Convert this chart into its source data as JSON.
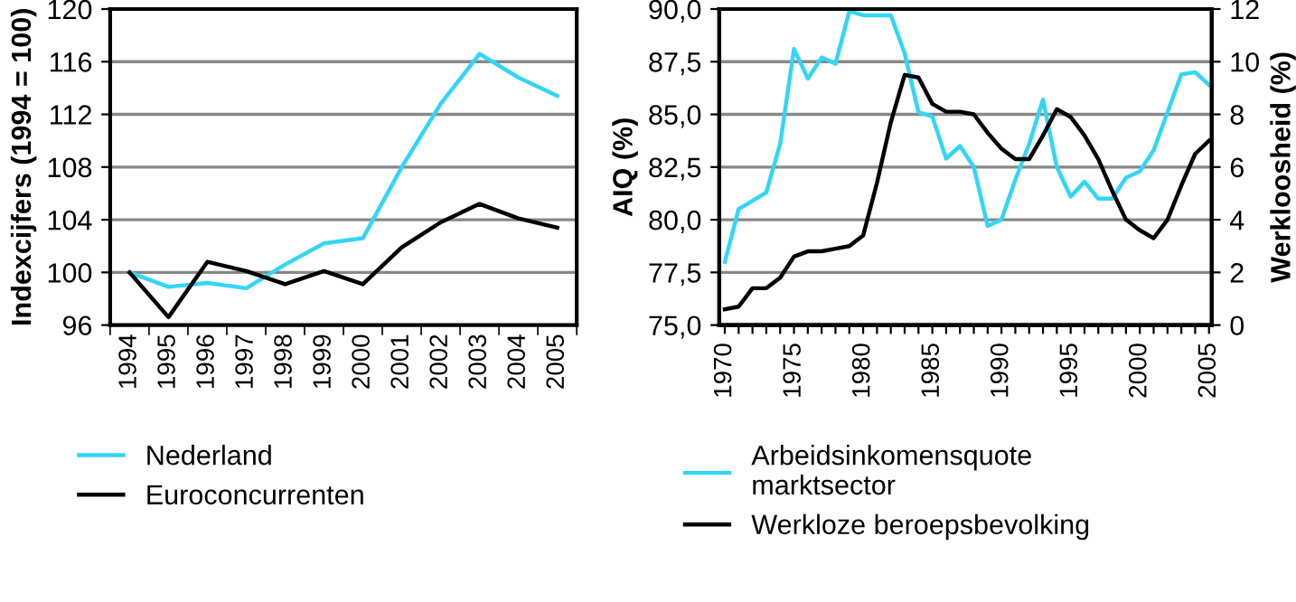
{
  "chart_data": [
    {
      "type": "line",
      "ylabel": "Indexcijfers (1994 = 100)",
      "categories": [
        "1994",
        "1995",
        "1996",
        "1997",
        "1998",
        "1999",
        "2000",
        "2001",
        "2002",
        "2003",
        "2004",
        "2005"
      ],
      "ylim": [
        96,
        120
      ],
      "yticks": [
        96,
        100,
        104,
        108,
        112,
        116,
        120
      ],
      "grid": "y",
      "legend": "bottom",
      "line_style": "solid",
      "series": [
        {
          "name": "Nederland",
          "color": "#33d6f5",
          "values": [
            100,
            98.9,
            99.2,
            98.8,
            100.6,
            102.2,
            102.6,
            108,
            112.8,
            116.6,
            114.8,
            113.4
          ]
        },
        {
          "name": "Euroconcurrenten",
          "color": "#000000",
          "values": [
            100,
            96.6,
            100.8,
            100.1,
            99.1,
            100.1,
            99.1,
            101.9,
            103.8,
            105.2,
            104.1,
            103.4
          ]
        }
      ]
    },
    {
      "type": "line",
      "ylabel": "AIQ (%)",
      "y2label": "Werkloosheid (%)",
      "x": [
        1970,
        1971,
        1972,
        1973,
        1974,
        1975,
        1976,
        1977,
        1978,
        1979,
        1980,
        1981,
        1982,
        1983,
        1984,
        1985,
        1986,
        1987,
        1988,
        1989,
        1990,
        1991,
        1992,
        1993,
        1994,
        1995,
        1996,
        1997,
        1998,
        1999,
        2000,
        2001,
        2002,
        2003,
        2004,
        2005
      ],
      "xlim": [
        1969.6,
        2005.2
      ],
      "xticks": [
        1970,
        {
          "value": 1971,
          "label": null
        },
        {
          "value": 1972,
          "label": null
        },
        {
          "value": 1973,
          "label": null
        },
        {
          "value": 1974,
          "label": null
        },
        1975,
        {
          "value": 1976,
          "label": null
        },
        {
          "value": 1977,
          "label": null
        },
        {
          "value": 1978,
          "label": null
        },
        {
          "value": 1979,
          "label": null
        },
        1980,
        {
          "value": 1981,
          "label": null
        },
        {
          "value": 1982,
          "label": null
        },
        {
          "value": 1983,
          "label": null
        },
        {
          "value": 1984,
          "label": null
        },
        1985,
        {
          "value": 1986,
          "label": null
        },
        {
          "value": 1987,
          "label": null
        },
        {
          "value": 1988,
          "label": null
        },
        {
          "value": 1989,
          "label": null
        },
        1990,
        {
          "value": 1991,
          "label": null
        },
        {
          "value": 1992,
          "label": null
        },
        {
          "value": 1993,
          "label": null
        },
        {
          "value": 1994,
          "label": null
        },
        1995,
        {
          "value": 1996,
          "label": null
        },
        {
          "value": 1997,
          "label": null
        },
        {
          "value": 1998,
          "label": null
        },
        {
          "value": 1999,
          "label": null
        },
        2000,
        {
          "value": 2001,
          "label": null
        },
        {
          "value": 2002,
          "label": null
        },
        {
          "value": 2003,
          "label": null
        },
        {
          "value": 2004,
          "label": null
        },
        2005
      ],
      "ylim": [
        75,
        90
      ],
      "yticks": [
        {
          "value": 75,
          "label": "75,0"
        },
        {
          "value": 77.5,
          "label": "77,5"
        },
        {
          "value": 80,
          "label": "80,0"
        },
        {
          "value": 82.5,
          "label": "82,5"
        },
        {
          "value": 85,
          "label": "85,0"
        },
        {
          "value": 87.5,
          "label": "87,5"
        },
        {
          "value": 90,
          "label": "90,0"
        }
      ],
      "y2lim": [
        0,
        12
      ],
      "y2ticks": [
        0,
        2,
        4,
        6,
        8,
        10,
        12
      ],
      "grid": "y",
      "legend": "bottom",
      "line_style": "solid",
      "series": [
        {
          "name": "Arbeidsinkomensquote\nmarktsector",
          "color": "#33d6f5",
          "values": [
            78.0,
            80.5,
            80.9,
            81.3,
            83.6,
            88.1,
            86.7,
            87.7,
            87.4,
            89.9,
            89.7,
            89.7,
            89.7,
            87.9,
            85.1,
            84.9,
            82.9,
            83.5,
            82.5,
            79.7,
            80.0,
            81.9,
            83.6,
            85.7,
            82.5,
            81.1,
            81.8,
            81.0,
            81.0,
            82.0,
            82.3,
            83.3,
            85.1,
            86.9,
            87.0,
            86.4
          ]
        },
        {
          "name": "Werkloze beroepsbevolking",
          "color": "#000000",
          "axis": "y2",
          "values": [
            0.6,
            0.7,
            1.4,
            1.4,
            1.8,
            2.6,
            2.8,
            2.8,
            2.9,
            3.0,
            3.4,
            5.4,
            7.7,
            9.5,
            9.4,
            8.4,
            8.1,
            8.1,
            8.0,
            7.3,
            6.7,
            6.3,
            6.3,
            7.2,
            8.2,
            7.9,
            7.2,
            6.3,
            5.1,
            4.0,
            3.6,
            3.3,
            4.0,
            5.3,
            6.5,
            7.0
          ]
        }
      ]
    }
  ]
}
